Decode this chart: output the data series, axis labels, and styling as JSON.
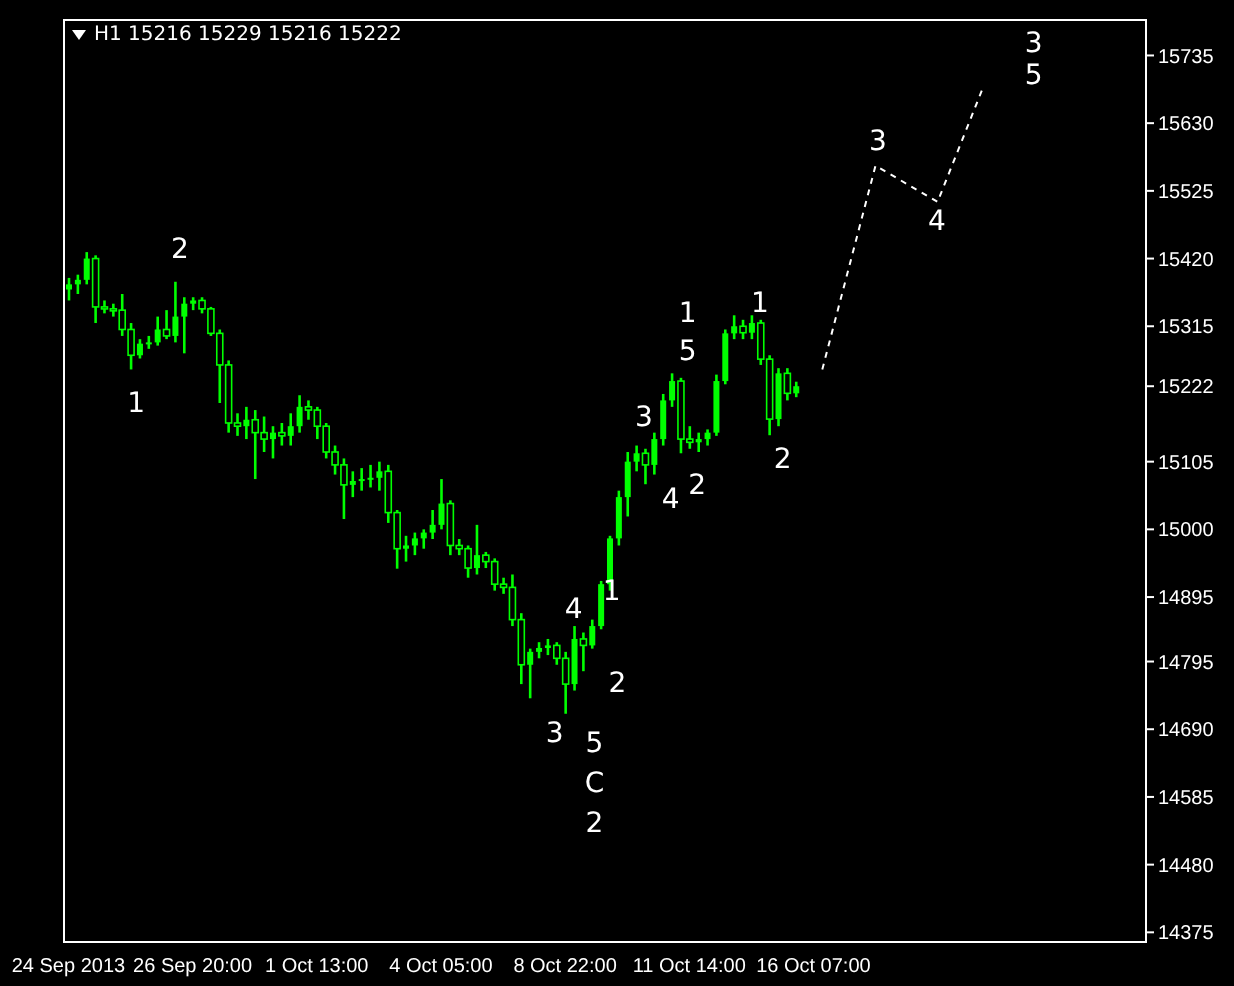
{
  "chart_data": {
    "type": "candlestick",
    "title": "H1  15216 15229 15216 15222",
    "color": "#00ff00",
    "categories": [
      "24 Sep 2013",
      null,
      null,
      null,
      null,
      null,
      null,
      null,
      null,
      null,
      null,
      null,
      null,
      null,
      "26 Sep 20:00",
      null,
      null,
      null,
      null,
      null,
      null,
      null,
      null,
      null,
      null,
      null,
      null,
      null,
      "1 Oct 13:00",
      null,
      null,
      null,
      null,
      null,
      null,
      null,
      null,
      null,
      null,
      null,
      null,
      null,
      "4 Oct 05:00",
      null,
      null,
      null,
      null,
      null,
      null,
      null,
      null,
      null,
      null,
      null,
      null,
      null,
      "8 Oct 22:00",
      null,
      null,
      null,
      null,
      null,
      null,
      null,
      null,
      null,
      null,
      null,
      null,
      null,
      "11 Oct 14:00",
      null,
      null,
      null,
      null,
      null,
      null,
      null,
      null,
      null,
      null,
      null,
      null,
      null,
      "16 Oct 07:00",
      null,
      null,
      null,
      null,
      null,
      null,
      null,
      null,
      null,
      null,
      null,
      null,
      null,
      null,
      null,
      null,
      null,
      null,
      null,
      null,
      null,
      null,
      null,
      null,
      null,
      null,
      null,
      null,
      null,
      null,
      null,
      null,
      null,
      null,
      null,
      null,
      null
    ],
    "ohlc": [
      [
        15372,
        15390,
        15355,
        15380
      ],
      [
        15380,
        15395,
        15365,
        15387
      ],
      [
        15387,
        15430,
        15380,
        15420
      ],
      [
        15420,
        15425,
        15320,
        15345
      ],
      [
        15345,
        15355,
        15335,
        15342
      ],
      [
        15342,
        15350,
        15330,
        15340
      ],
      [
        15340,
        15365,
        15300,
        15310
      ],
      [
        15310,
        15320,
        15248,
        15270
      ],
      [
        15270,
        15295,
        15265,
        15288
      ],
      [
        15288,
        15300,
        15280,
        15290
      ],
      [
        15290,
        15330,
        15285,
        15310
      ],
      [
        15310,
        15340,
        15295,
        15300
      ],
      [
        15300,
        15384,
        15290,
        15330
      ],
      [
        15330,
        15360,
        15273,
        15350
      ],
      [
        15350,
        15360,
        15340,
        15355
      ],
      [
        15355,
        15360,
        15335,
        15342
      ],
      [
        15342,
        15345,
        15300,
        15304
      ],
      [
        15304,
        15310,
        15196,
        15255
      ],
      [
        15255,
        15262,
        15150,
        15165
      ],
      [
        15165,
        15180,
        15145,
        15160
      ],
      [
        15160,
        15190,
        15140,
        15170
      ],
      [
        15170,
        15185,
        15078,
        15150
      ],
      [
        15150,
        15175,
        15120,
        15140
      ],
      [
        15140,
        15160,
        15110,
        15150
      ],
      [
        15150,
        15165,
        15130,
        15145
      ],
      [
        15145,
        15180,
        15130,
        15160
      ],
      [
        15160,
        15208,
        15150,
        15190
      ],
      [
        15190,
        15200,
        15170,
        15185
      ],
      [
        15185,
        15190,
        15140,
        15160
      ],
      [
        15160,
        15165,
        15110,
        15120
      ],
      [
        15120,
        15130,
        15085,
        15100
      ],
      [
        15100,
        15110,
        15016,
        15069
      ],
      [
        15069,
        15090,
        15050,
        15075
      ],
      [
        15075,
        15095,
        15060,
        15078
      ],
      [
        15078,
        15100,
        15065,
        15080
      ],
      [
        15080,
        15105,
        15060,
        15090
      ],
      [
        15090,
        15100,
        15010,
        15026
      ],
      [
        15026,
        15030,
        14939,
        14970
      ],
      [
        14970,
        14990,
        14950,
        14975
      ],
      [
        14975,
        14995,
        14960,
        14986
      ],
      [
        14986,
        15000,
        14970,
        14995
      ],
      [
        14995,
        15030,
        14985,
        15007
      ],
      [
        15007,
        15078,
        15000,
        15040
      ],
      [
        15040,
        15045,
        14960,
        14975
      ],
      [
        14975,
        14985,
        14960,
        14970
      ],
      [
        14970,
        14975,
        14925,
        14940
      ],
      [
        14940,
        15007,
        14930,
        14960
      ],
      [
        14960,
        14965,
        14940,
        14950
      ],
      [
        14950,
        14955,
        14905,
        14915
      ],
      [
        14915,
        14925,
        14900,
        14910
      ],
      [
        14910,
        14930,
        14850,
        14860
      ],
      [
        14860,
        14870,
        14760,
        14790
      ],
      [
        14790,
        14815,
        14738,
        14810
      ],
      [
        14810,
        14825,
        14800,
        14816
      ],
      [
        14816,
        14830,
        14805,
        14820
      ],
      [
        14820,
        14825,
        14790,
        14800
      ],
      [
        14800,
        14810,
        14714,
        14760
      ],
      [
        14760,
        14850,
        14750,
        14830
      ],
      [
        14830,
        14840,
        14780,
        14820
      ],
      [
        14820,
        14860,
        14815,
        14850
      ],
      [
        14850,
        14920,
        14845,
        14915
      ],
      [
        14915,
        14990,
        14905,
        14986
      ],
      [
        14986,
        15060,
        14975,
        15050
      ],
      [
        15050,
        15120,
        15020,
        15105
      ],
      [
        15105,
        15130,
        15090,
        15118
      ],
      [
        15118,
        15125,
        15070,
        15100
      ],
      [
        15100,
        15150,
        15085,
        15140
      ],
      [
        15140,
        15210,
        15130,
        15200
      ],
      [
        15200,
        15242,
        15190,
        15230
      ],
      [
        15230,
        15235,
        15118,
        15140
      ],
      [
        15140,
        15160,
        15125,
        15135
      ],
      [
        15135,
        15150,
        15120,
        15140
      ],
      [
        15140,
        15155,
        15130,
        15150
      ],
      [
        15150,
        15240,
        15145,
        15230
      ],
      [
        15230,
        15310,
        15225,
        15304
      ],
      [
        15304,
        15332,
        15295,
        15315
      ],
      [
        15315,
        15325,
        15295,
        15305
      ],
      [
        15305,
        15332,
        15295,
        15320
      ],
      [
        15320,
        15325,
        15255,
        15264
      ],
      [
        15264,
        15270,
        15146,
        15171
      ],
      [
        15171,
        15250,
        15160,
        15242
      ],
      [
        15242,
        15250,
        15200,
        15211
      ],
      [
        15211,
        15229,
        15205,
        15222
      ],
      null,
      null,
      null,
      null,
      null,
      null,
      null,
      null,
      null,
      null,
      null,
      null,
      null,
      null,
      null,
      null,
      null,
      null,
      null,
      null,
      null,
      null,
      null,
      null,
      null,
      null,
      null,
      null,
      null,
      null,
      null,
      null,
      null,
      null,
      null,
      null,
      null,
      null,
      null
    ],
    "series": [
      {
        "type": "line",
        "color": "#ffffff",
        "line_style": "dashed",
        "marker": "none",
        "values": [
          null,
          null,
          null,
          null,
          null,
          null,
          null,
          null,
          null,
          null,
          null,
          null,
          null,
          null,
          null,
          null,
          null,
          null,
          null,
          null,
          null,
          null,
          null,
          null,
          null,
          null,
          null,
          null,
          null,
          null,
          null,
          null,
          null,
          null,
          null,
          null,
          null,
          null,
          null,
          null,
          null,
          null,
          null,
          null,
          null,
          null,
          null,
          null,
          null,
          null,
          null,
          null,
          null,
          null,
          null,
          null,
          null,
          null,
          null,
          null,
          null,
          null,
          null,
          null,
          null,
          null,
          null,
          null,
          null,
          null,
          null,
          null,
          null,
          null,
          null,
          null,
          null,
          null,
          null,
          null,
          null,
          null,
          null,
          null,
          null,
          15248,
          null,
          null,
          null,
          null,
          null,
          15564,
          null,
          null,
          null,
          null,
          null,
          null,
          15508,
          null,
          null,
          null,
          null,
          15681,
          null,
          null,
          null,
          null,
          null,
          null,
          null,
          null,
          null,
          null,
          null,
          null,
          null,
          null,
          null,
          null,
          null,
          null
        ]
      }
    ],
    "ylim": [
      14360,
      15790
    ],
    "yticks": [
      14375,
      14480,
      14585,
      14690,
      14795,
      14895,
      15000,
      15105,
      15222,
      15315,
      15420,
      15525,
      15630,
      15735
    ],
    "grid": false,
    "annotations": [
      "1",
      "2",
      "3",
      "4",
      "1",
      "2",
      "5",
      "C",
      "2",
      "3",
      "4",
      "2",
      "1",
      "5",
      "1",
      "2",
      "3",
      "4",
      "3",
      "5"
    ]
  }
}
